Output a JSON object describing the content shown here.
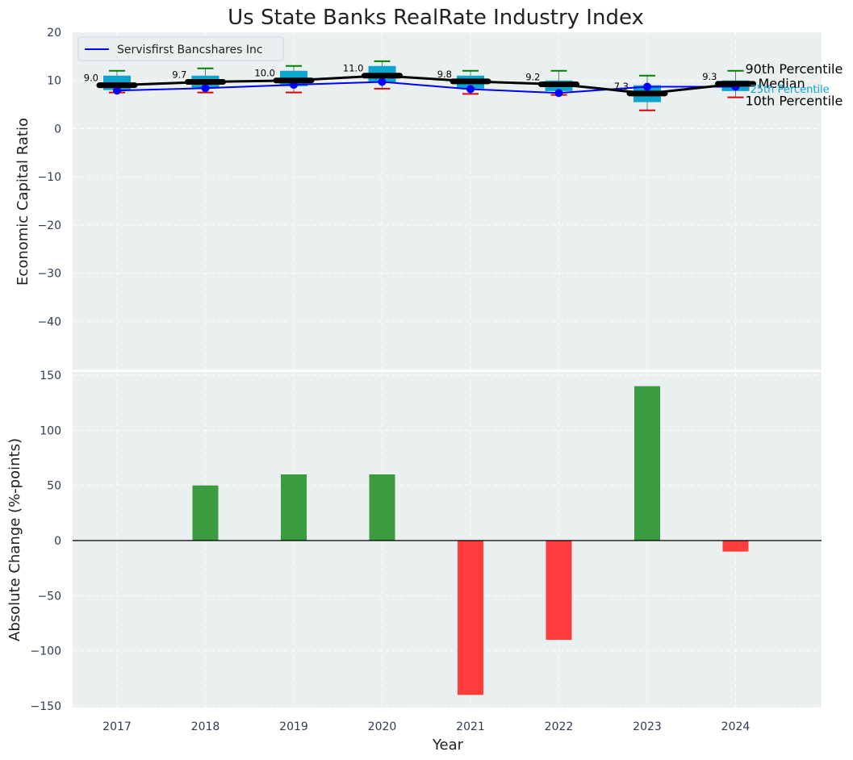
{
  "chart_data": [
    {
      "type": "box",
      "title": "Us State Banks RealRate Industry Index",
      "ylabel": "Economic Capital Ratio",
      "ylim": [
        -50,
        20
      ],
      "yticks": [
        20,
        10,
        0,
        -10,
        -20,
        -30,
        -40
      ],
      "categories": [
        "2017",
        "2018",
        "2019",
        "2020",
        "2021",
        "2022",
        "2023",
        "2024"
      ],
      "median": [
        9.0,
        9.7,
        10.0,
        11.0,
        9.8,
        9.2,
        7.3,
        9.3
      ],
      "median_labels": [
        "9.0",
        "9.7",
        "10.0",
        "11.0",
        "9.8",
        "9.2",
        "7.3",
        "9.3"
      ],
      "p75": [
        11.0,
        11.0,
        12.0,
        13.0,
        11.0,
        10.0,
        9.0,
        10.0
      ],
      "p25": [
        8.0,
        8.5,
        8.8,
        9.5,
        8.3,
        7.8,
        5.5,
        7.8
      ],
      "p90": [
        12.0,
        12.5,
        13.0,
        14.0,
        12.0,
        12.0,
        11.0,
        12.0
      ],
      "p10": [
        7.5,
        7.5,
        7.5,
        8.3,
        7.2,
        7.0,
        3.8,
        6.5
      ],
      "series": [
        {
          "name": "Servisfirst Bancshares Inc",
          "values": [
            7.9,
            8.4,
            9.1,
            9.7,
            8.2,
            7.4,
            8.7,
            8.7
          ]
        }
      ],
      "annotations": {
        "p90": "90th Percentile",
        "median": "Median",
        "p25": "25th Percentile",
        "p10": "10th Percentile"
      },
      "legend_position": "top-left",
      "colors": {
        "box": "#0ea5cf",
        "median": "#000000",
        "whisker_top": "#008000",
        "whisker_bottom": "#e00000",
        "company": "#0000ff",
        "background": "#eaeff0"
      }
    },
    {
      "type": "bar",
      "ylabel": "Absolute Change (%-points)",
      "xlabel": "Year",
      "ylim": [
        -150,
        150
      ],
      "yticks": [
        150,
        100,
        50,
        0,
        -50,
        -100,
        -150
      ],
      "categories": [
        "2017",
        "2018",
        "2019",
        "2020",
        "2021",
        "2022",
        "2023",
        "2024"
      ],
      "values": [
        0,
        50,
        60,
        60,
        -140,
        -90,
        140,
        -10
      ],
      "colors": {
        "positive": "#3a9c3e",
        "negative": "#ff3b3b"
      }
    }
  ]
}
